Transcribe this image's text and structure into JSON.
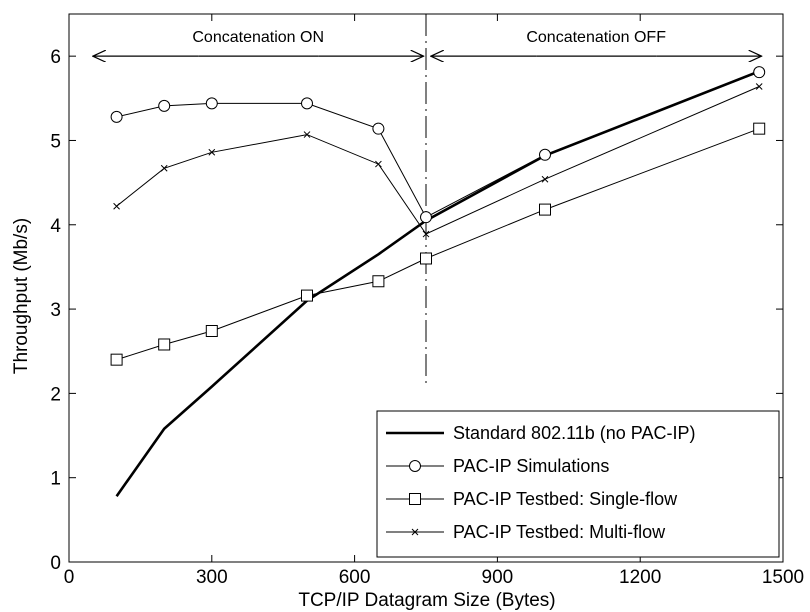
{
  "chart_data": {
    "type": "line",
    "xlabel": "TCP/IP Datagram Size (Bytes)",
    "ylabel": "Throughput (Mb/s)",
    "xlim": [
      0,
      1500
    ],
    "ylim": [
      0,
      6.5
    ],
    "xticks": [
      0,
      300,
      600,
      900,
      1200,
      1500
    ],
    "yticks": [
      0,
      1,
      2,
      3,
      4,
      5,
      6
    ],
    "grid": false,
    "legend_position": "bottom-right",
    "series": [
      {
        "name": "Standard 802.11b (no PAC-IP)",
        "marker": "none",
        "linewidth": "thick",
        "x": [
          100,
          200,
          300,
          500,
          650,
          750,
          1000,
          1450
        ],
        "y": [
          0.78,
          1.58,
          2.08,
          3.1,
          3.65,
          4.05,
          4.82,
          5.82
        ]
      },
      {
        "name": "PAC-IP Simulations",
        "marker": "circle",
        "x": [
          100,
          200,
          300,
          500,
          650,
          750,
          1000,
          1450
        ],
        "y": [
          5.28,
          5.41,
          5.44,
          5.44,
          5.14,
          4.09,
          4.83,
          5.81
        ]
      },
      {
        "name": "PAC-IP Testbed: Single-flow",
        "marker": "square",
        "x": [
          100,
          200,
          300,
          500,
          650,
          750,
          1000,
          1450
        ],
        "y": [
          2.4,
          2.58,
          2.74,
          3.16,
          3.33,
          3.6,
          4.18,
          5.14
        ]
      },
      {
        "name": "PAC-IP Testbed: Multi-flow",
        "marker": "x",
        "x": [
          100,
          200,
          300,
          500,
          650,
          750,
          1000,
          1450
        ],
        "y": [
          4.22,
          4.67,
          4.86,
          5.07,
          4.72,
          3.89,
          4.54,
          5.64
        ]
      }
    ],
    "annotations": [
      {
        "text": "Concatenation ON",
        "x_range": [
          50,
          745
        ],
        "y": 6.0
      },
      {
        "text": "Concatenation OFF",
        "x_range": [
          760,
          1455
        ],
        "y": 6.0
      }
    ],
    "vertical_line": {
      "x": 750,
      "y_range": [
        2.1,
        6.5
      ],
      "style": "dash-dot"
    }
  }
}
